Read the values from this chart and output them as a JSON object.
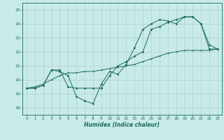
{
  "background_color": "#c8eae8",
  "grid_color": "#a8ceca",
  "line_color": "#1a6b60",
  "xlabel": "Humidex (Indice chaleur)",
  "ylim": [
    17.5,
    25.5
  ],
  "xlim": [
    -0.5,
    23.5
  ],
  "yticks": [
    18,
    19,
    20,
    21,
    22,
    23,
    24,
    25
  ],
  "xticks": [
    0,
    1,
    2,
    3,
    4,
    5,
    6,
    7,
    8,
    9,
    10,
    11,
    12,
    13,
    14,
    15,
    16,
    17,
    18,
    19,
    20,
    21,
    22,
    23
  ],
  "series1_x": [
    0,
    1,
    2,
    3,
    4,
    5,
    6,
    7,
    8,
    9,
    10,
    11,
    12,
    13,
    14,
    15,
    16,
    17,
    18,
    19,
    20,
    21,
    22,
    23
  ],
  "series1_y": [
    19.4,
    19.4,
    19.6,
    20.7,
    20.6,
    20.3,
    18.8,
    18.5,
    18.3,
    19.7,
    20.6,
    20.4,
    21.1,
    22.3,
    23.6,
    24.0,
    24.3,
    24.2,
    24.0,
    24.5,
    24.5,
    24.0,
    22.2,
    22.2
  ],
  "series2_x": [
    0,
    1,
    2,
    3,
    4,
    5,
    6,
    7,
    8,
    9,
    10,
    11,
    12,
    13,
    14,
    15,
    16,
    17,
    18,
    19,
    20,
    21,
    22,
    23
  ],
  "series2_y": [
    19.4,
    19.4,
    19.6,
    20.7,
    20.7,
    19.5,
    19.4,
    19.4,
    19.4,
    19.4,
    20.3,
    21.0,
    21.3,
    21.7,
    22.0,
    23.6,
    23.8,
    24.1,
    24.3,
    24.5,
    24.5,
    24.0,
    22.5,
    22.2
  ],
  "series3_x": [
    0,
    1,
    2,
    3,
    4,
    5,
    6,
    7,
    8,
    9,
    10,
    11,
    12,
    13,
    14,
    15,
    16,
    17,
    18,
    19,
    20,
    21,
    22,
    23
  ],
  "series3_y": [
    19.4,
    19.5,
    19.7,
    20.0,
    20.3,
    20.5,
    20.5,
    20.6,
    20.6,
    20.7,
    20.8,
    20.9,
    21.0,
    21.1,
    21.3,
    21.5,
    21.7,
    21.9,
    22.0,
    22.1,
    22.1,
    22.1,
    22.1,
    22.2
  ]
}
